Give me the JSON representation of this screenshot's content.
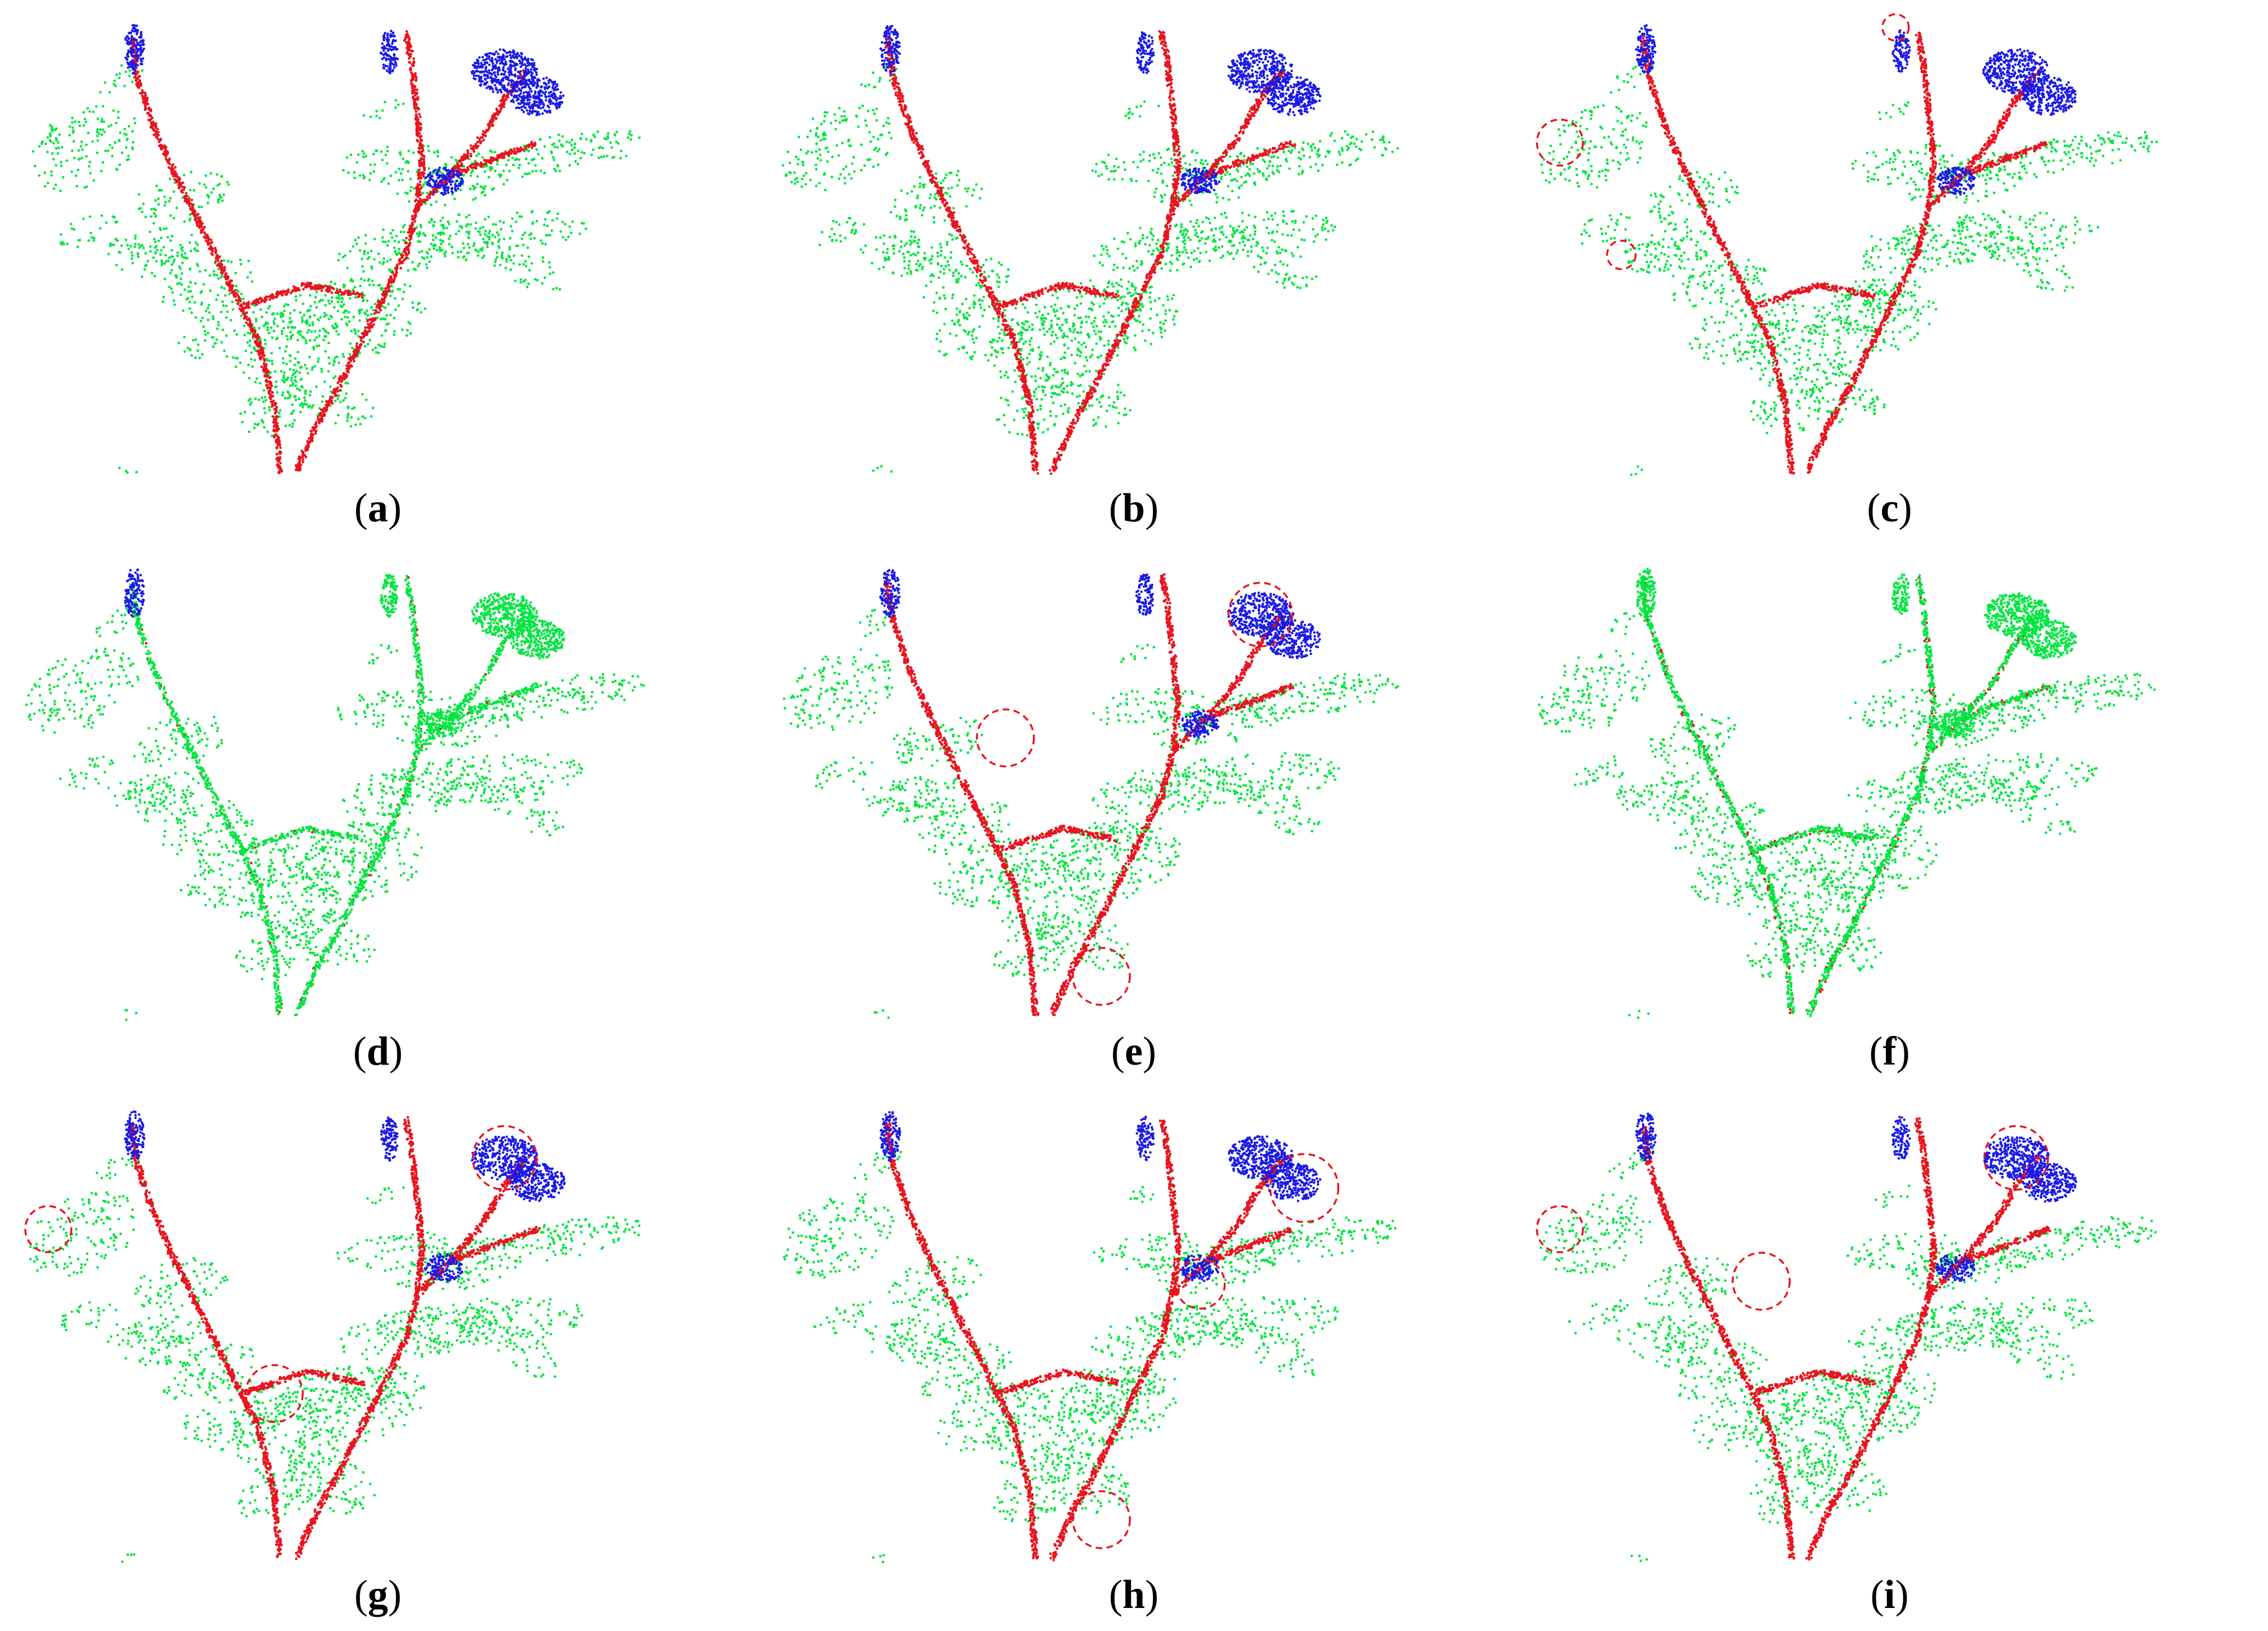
{
  "colors": {
    "leaf": "#00e640",
    "stem": "#e8141e",
    "flower": "#1a1ae6",
    "highlight_circle": "#e8141e",
    "background": "#ffffff"
  },
  "panels": [
    {
      "id": "a",
      "label": "a",
      "stem_ratio": 1.0,
      "flower_ratio": 1.0,
      "circles": []
    },
    {
      "id": "b",
      "label": "b",
      "stem_ratio": 1.0,
      "flower_ratio": 1.0,
      "circles": []
    },
    {
      "id": "c",
      "label": "c",
      "stem_ratio": 1.0,
      "flower_ratio": 1.0,
      "circles": [
        "top-center-flower",
        "left-leaf",
        "left-branch"
      ]
    },
    {
      "id": "d",
      "label": "d",
      "stem_ratio": 0.05,
      "flower_ratio": 0.15,
      "circles": []
    },
    {
      "id": "e",
      "label": "e",
      "stem_ratio": 1.0,
      "flower_ratio": 1.0,
      "circles": [
        "right-flower-cluster",
        "left-mid-branch",
        "bottom-junction"
      ]
    },
    {
      "id": "f",
      "label": "f",
      "stem_ratio": 0.15,
      "flower_ratio": 0.0,
      "circles": []
    },
    {
      "id": "g",
      "label": "g",
      "stem_ratio": 1.0,
      "flower_ratio": 1.0,
      "circles": [
        "right-flower-cluster",
        "left-leaf",
        "center-gap"
      ]
    },
    {
      "id": "h",
      "label": "h",
      "stem_ratio": 1.0,
      "flower_ratio": 1.0,
      "circles": [
        "right-flower-lower",
        "center-right-joint",
        "bottom-junction"
      ]
    },
    {
      "id": "i",
      "label": "i",
      "stem_ratio": 1.0,
      "flower_ratio": 1.0,
      "circles": [
        "right-flower-cluster",
        "left-leaf",
        "left-mid-branch"
      ]
    }
  ]
}
